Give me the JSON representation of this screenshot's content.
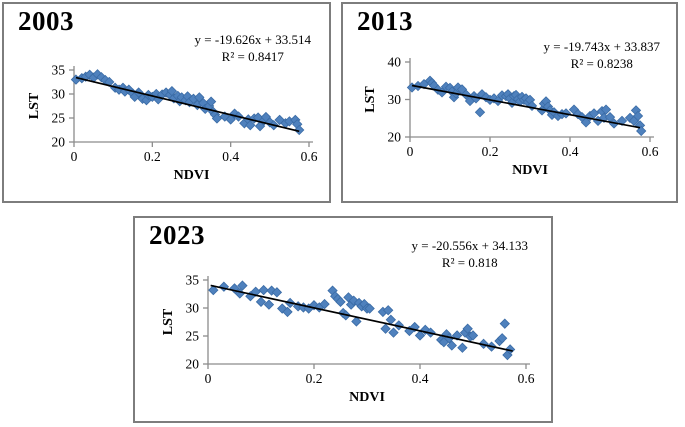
{
  "panels": [
    {
      "year": "2003",
      "equation": "y = -19.626x + 33.514",
      "r2": "R² = 0.8417"
    },
    {
      "year": "2013",
      "equation": "y = -19.743x + 33.837",
      "r2": "R² = 0.8238"
    },
    {
      "year": "2023",
      "equation": "y = -20.556x + 34.133",
      "r2": "R² = 0.818"
    }
  ],
  "colors": {
    "marker_fill": "#4F81BD",
    "marker_edge": "#3A6BA5",
    "trend_line": "#000000",
    "axis_line": "#8c8c8c"
  },
  "chart_data": [
    {
      "type": "scatter",
      "title": "2003",
      "xlabel": "NDVI",
      "ylabel": "LST",
      "xlim": [
        0,
        0.6
      ],
      "ylim": [
        20,
        35
      ],
      "xticks": [
        0,
        0.2,
        0.4,
        0.6
      ],
      "yticks": [
        20,
        25,
        30,
        35
      ],
      "grid": false,
      "legend": "none",
      "trendline": {
        "slope": -19.626,
        "intercept": 33.514,
        "x_start": 0.005,
        "x_end": 0.575,
        "color": "#000000"
      },
      "marker": {
        "shape": "diamond",
        "color": "#4F81BD",
        "edge": "#3A6BA5"
      },
      "points": [
        [
          0.005,
          33.0
        ],
        [
          0.02,
          33.3
        ],
        [
          0.03,
          33.6
        ],
        [
          0.04,
          34.0
        ],
        [
          0.05,
          33.4
        ],
        [
          0.06,
          34.1
        ],
        [
          0.07,
          33.5
        ],
        [
          0.08,
          32.9
        ],
        [
          0.09,
          32.5
        ],
        [
          0.105,
          31.3
        ],
        [
          0.115,
          30.9
        ],
        [
          0.125,
          31.3
        ],
        [
          0.13,
          30.5
        ],
        [
          0.14,
          30.9
        ],
        [
          0.15,
          30.1
        ],
        [
          0.155,
          29.4
        ],
        [
          0.165,
          30.3
        ],
        [
          0.175,
          29.0
        ],
        [
          0.185,
          28.7
        ],
        [
          0.19,
          29.8
        ],
        [
          0.2,
          29.4
        ],
        [
          0.21,
          30.0
        ],
        [
          0.215,
          28.9
        ],
        [
          0.225,
          29.9
        ],
        [
          0.235,
          30.3
        ],
        [
          0.245,
          29.8
        ],
        [
          0.25,
          30.6
        ],
        [
          0.255,
          29.1
        ],
        [
          0.265,
          29.6
        ],
        [
          0.27,
          28.5
        ],
        [
          0.275,
          29.3
        ],
        [
          0.285,
          28.7
        ],
        [
          0.29,
          29.5
        ],
        [
          0.295,
          28.3
        ],
        [
          0.305,
          29.0
        ],
        [
          0.315,
          27.7
        ],
        [
          0.32,
          29.3
        ],
        [
          0.33,
          28.1
        ],
        [
          0.335,
          26.9
        ],
        [
          0.345,
          27.5
        ],
        [
          0.35,
          28.4
        ],
        [
          0.355,
          26.3
        ],
        [
          0.36,
          25.7
        ],
        [
          0.365,
          24.9
        ],
        [
          0.385,
          25.3
        ],
        [
          0.4,
          24.7
        ],
        [
          0.41,
          25.9
        ],
        [
          0.42,
          25.3
        ],
        [
          0.435,
          23.9
        ],
        [
          0.445,
          24.7
        ],
        [
          0.45,
          23.5
        ],
        [
          0.46,
          24.9
        ],
        [
          0.47,
          25.1
        ],
        [
          0.475,
          23.3
        ],
        [
          0.485,
          24.5
        ],
        [
          0.49,
          25.2
        ],
        [
          0.5,
          24.1
        ],
        [
          0.51,
          23.5
        ],
        [
          0.525,
          24.6
        ],
        [
          0.54,
          23.9
        ],
        [
          0.55,
          24.3
        ],
        [
          0.565,
          24.6
        ],
        [
          0.57,
          23.7
        ],
        [
          0.575,
          22.5
        ]
      ]
    },
    {
      "type": "scatter",
      "title": "2013",
      "xlabel": "NDVI",
      "ylabel": "LST",
      "xlim": [
        0,
        0.6
      ],
      "ylim": [
        20,
        40
      ],
      "xticks": [
        0,
        0.2,
        0.4,
        0.6
      ],
      "yticks": [
        20,
        30,
        40
      ],
      "grid": false,
      "legend": "none",
      "trendline": {
        "slope": -19.743,
        "intercept": 33.837,
        "x_start": 0.005,
        "x_end": 0.575,
        "color": "#000000"
      },
      "marker": {
        "shape": "diamond",
        "color": "#4F81BD",
        "edge": "#3A6BA5"
      },
      "points": [
        [
          0.005,
          33.2
        ],
        [
          0.02,
          33.6
        ],
        [
          0.035,
          34.1
        ],
        [
          0.05,
          35.0
        ],
        [
          0.055,
          34.4
        ],
        [
          0.06,
          33.7
        ],
        [
          0.07,
          32.6
        ],
        [
          0.08,
          31.9
        ],
        [
          0.09,
          33.4
        ],
        [
          0.1,
          33.1
        ],
        [
          0.105,
          32.1
        ],
        [
          0.11,
          30.6
        ],
        [
          0.115,
          31.6
        ],
        [
          0.12,
          33.2
        ],
        [
          0.13,
          32.7
        ],
        [
          0.14,
          31.3
        ],
        [
          0.15,
          29.6
        ],
        [
          0.16,
          30.9
        ],
        [
          0.165,
          30.3
        ],
        [
          0.175,
          26.6
        ],
        [
          0.18,
          31.4
        ],
        [
          0.19,
          30.6
        ],
        [
          0.2,
          29.9
        ],
        [
          0.21,
          30.3
        ],
        [
          0.22,
          29.6
        ],
        [
          0.23,
          31.1
        ],
        [
          0.24,
          30.9
        ],
        [
          0.245,
          31.4
        ],
        [
          0.25,
          30.3
        ],
        [
          0.255,
          29.1
        ],
        [
          0.26,
          30.9
        ],
        [
          0.265,
          31.2
        ],
        [
          0.27,
          30.1
        ],
        [
          0.275,
          29.5
        ],
        [
          0.28,
          30.7
        ],
        [
          0.285,
          29.9
        ],
        [
          0.29,
          30.3
        ],
        [
          0.295,
          29.3
        ],
        [
          0.3,
          29.9
        ],
        [
          0.305,
          28.3
        ],
        [
          0.33,
          27.1
        ],
        [
          0.335,
          28.9
        ],
        [
          0.34,
          29.5
        ],
        [
          0.345,
          28.1
        ],
        [
          0.35,
          27.1
        ],
        [
          0.355,
          25.9
        ],
        [
          0.36,
          26.6
        ],
        [
          0.37,
          25.6
        ],
        [
          0.38,
          26.1
        ],
        [
          0.39,
          26.3
        ],
        [
          0.41,
          27.3
        ],
        [
          0.42,
          26.1
        ],
        [
          0.43,
          25.3
        ],
        [
          0.44,
          23.9
        ],
        [
          0.45,
          25.6
        ],
        [
          0.46,
          26.3
        ],
        [
          0.47,
          24.3
        ],
        [
          0.48,
          26.9
        ],
        [
          0.485,
          25.1
        ],
        [
          0.49,
          27.3
        ],
        [
          0.5,
          25.3
        ],
        [
          0.51,
          23.6
        ],
        [
          0.53,
          24.3
        ],
        [
          0.55,
          25.1
        ],
        [
          0.56,
          24.3
        ],
        [
          0.565,
          27.1
        ],
        [
          0.57,
          25.6
        ],
        [
          0.575,
          23.1
        ],
        [
          0.578,
          21.6
        ]
      ]
    },
    {
      "type": "scatter",
      "title": "2023",
      "xlabel": "NDVI",
      "ylabel": "LST",
      "xlim": [
        0,
        0.6
      ],
      "ylim": [
        20,
        35
      ],
      "xticks": [
        0,
        0.2,
        0.4,
        0.6
      ],
      "yticks": [
        20,
        25,
        30,
        35
      ],
      "grid": false,
      "legend": "none",
      "trendline": {
        "slope": -20.556,
        "intercept": 34.133,
        "x_start": 0.005,
        "x_end": 0.575,
        "color": "#000000"
      },
      "marker": {
        "shape": "diamond",
        "color": "#4F81BD",
        "edge": "#3A6BA5"
      },
      "points": [
        [
          0.01,
          33.2
        ],
        [
          0.03,
          33.8
        ],
        [
          0.05,
          33.5
        ],
        [
          0.06,
          32.6
        ],
        [
          0.065,
          34.0
        ],
        [
          0.08,
          32.1
        ],
        [
          0.09,
          32.9
        ],
        [
          0.1,
          31.1
        ],
        [
          0.105,
          33.2
        ],
        [
          0.115,
          30.6
        ],
        [
          0.12,
          33.1
        ],
        [
          0.13,
          32.8
        ],
        [
          0.14,
          29.9
        ],
        [
          0.15,
          29.3
        ],
        [
          0.155,
          30.9
        ],
        [
          0.17,
          30.3
        ],
        [
          0.18,
          30.1
        ],
        [
          0.19,
          29.9
        ],
        [
          0.2,
          30.5
        ],
        [
          0.21,
          30.1
        ],
        [
          0.22,
          30.7
        ],
        [
          0.235,
          33.1
        ],
        [
          0.24,
          32.1
        ],
        [
          0.245,
          31.6
        ],
        [
          0.25,
          31.1
        ],
        [
          0.255,
          29.1
        ],
        [
          0.26,
          28.7
        ],
        [
          0.265,
          31.9
        ],
        [
          0.27,
          30.6
        ],
        [
          0.275,
          31.3
        ],
        [
          0.28,
          27.6
        ],
        [
          0.285,
          30.9
        ],
        [
          0.29,
          30.3
        ],
        [
          0.295,
          30.7
        ],
        [
          0.3,
          29.9
        ],
        [
          0.305,
          29.9
        ],
        [
          0.33,
          29.3
        ],
        [
          0.335,
          26.3
        ],
        [
          0.34,
          29.6
        ],
        [
          0.345,
          27.9
        ],
        [
          0.35,
          25.6
        ],
        [
          0.36,
          26.9
        ],
        [
          0.38,
          25.9
        ],
        [
          0.39,
          26.6
        ],
        [
          0.4,
          25.1
        ],
        [
          0.41,
          26.1
        ],
        [
          0.42,
          25.6
        ],
        [
          0.44,
          24.3
        ],
        [
          0.445,
          23.9
        ],
        [
          0.45,
          25.3
        ],
        [
          0.455,
          24.6
        ],
        [
          0.46,
          23.3
        ],
        [
          0.47,
          25.1
        ],
        [
          0.48,
          22.9
        ],
        [
          0.485,
          25.6
        ],
        [
          0.49,
          26.3
        ],
        [
          0.495,
          24.9
        ],
        [
          0.5,
          25.1
        ],
        [
          0.52,
          23.6
        ],
        [
          0.535,
          23.1
        ],
        [
          0.55,
          24.1
        ],
        [
          0.555,
          24.6
        ],
        [
          0.56,
          27.2
        ],
        [
          0.565,
          21.6
        ],
        [
          0.57,
          22.6
        ]
      ]
    }
  ]
}
